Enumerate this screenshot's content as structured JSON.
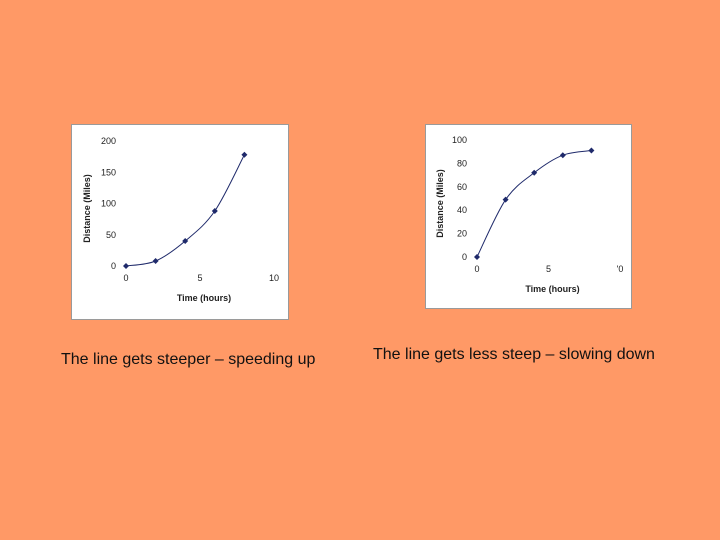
{
  "colors": {
    "background": "#FF9966",
    "series": "#1F2A6B",
    "panel": "#FFFFFF"
  },
  "chart_data": [
    {
      "type": "line",
      "xlabel": "Time (hours)",
      "ylabel": "Distance (Miles)",
      "xlim": [
        0,
        10
      ],
      "ylim": [
        0,
        200
      ],
      "xticks": [
        "0",
        "5",
        "10"
      ],
      "yticks": [
        "0",
        "50",
        "100",
        "150",
        "200"
      ],
      "grid": false,
      "series": [
        {
          "x": [
            0,
            2,
            4,
            6,
            8
          ],
          "y": [
            0,
            8,
            40,
            88,
            178
          ]
        }
      ]
    },
    {
      "type": "line",
      "xlabel": "Time (hours)",
      "ylabel": "Distance (Miles)",
      "xlim": [
        0,
        10
      ],
      "ylim": [
        0,
        100
      ],
      "xticks": [
        "0",
        "5",
        "'0"
      ],
      "yticks": [
        "0",
        "20",
        "40",
        "60",
        "80",
        "100"
      ],
      "grid": false,
      "series": [
        {
          "x": [
            0,
            2,
            4,
            6,
            8
          ],
          "y": [
            0,
            49,
            72,
            87,
            91
          ]
        }
      ]
    }
  ],
  "captions": {
    "left": "The line gets steeper – speeding up",
    "right": "The line gets less steep – slowing down"
  }
}
